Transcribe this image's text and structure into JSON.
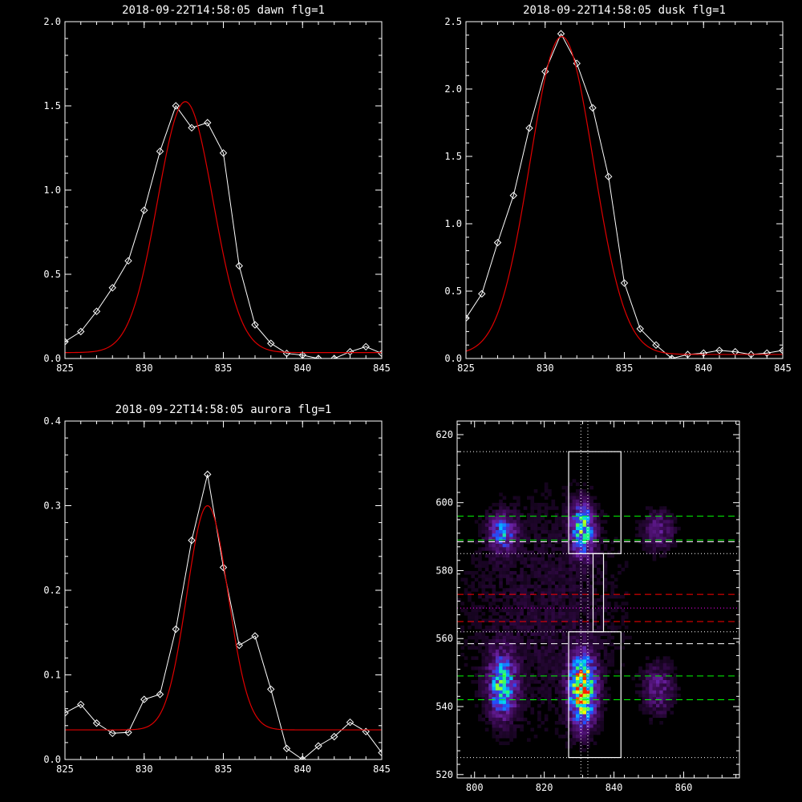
{
  "chart_data": [
    {
      "type": "line",
      "title": "2018-09-22T14:58:05 dawn flg=1",
      "xlim": [
        825,
        845
      ],
      "ylim": [
        0,
        2.0
      ],
      "xticks": [
        825,
        830,
        835,
        840,
        845
      ],
      "xtick_labels": [
        "825",
        "830",
        "835",
        "840",
        "845"
      ],
      "yticks": [
        0,
        0.5,
        1.0,
        1.5,
        2.0
      ],
      "ytick_labels": [
        "0.0",
        "0.5",
        "1.0",
        "1.5",
        "2.0"
      ],
      "series": [
        {
          "style": "line-diamond",
          "color": "#ffffff",
          "x": [
            825,
            826,
            827,
            828,
            829,
            830,
            831,
            832,
            833,
            834,
            835,
            836,
            837,
            838,
            839,
            840,
            841,
            842,
            843,
            844,
            845
          ],
          "y": [
            0.1,
            0.16,
            0.28,
            0.42,
            0.58,
            0.88,
            1.23,
            1.5,
            1.37,
            1.4,
            1.22,
            0.55,
            0.2,
            0.09,
            0.03,
            0.02,
            0.0,
            0.0,
            0.04,
            0.07,
            0.03
          ]
        },
        {
          "style": "curve",
          "color": "#e00000",
          "gaussian": {
            "amplitude": 1.49,
            "center": 832.6,
            "sigma": 1.75,
            "baseline": 0.035
          }
        }
      ]
    },
    {
      "type": "line",
      "title": "2018-09-22T14:58:05 dusk flg=1",
      "xlim": [
        825,
        845
      ],
      "ylim": [
        0,
        2.5
      ],
      "xticks": [
        825,
        830,
        835,
        840,
        845
      ],
      "xtick_labels": [
        "825",
        "830",
        "835",
        "840",
        "845"
      ],
      "yticks": [
        0,
        0.5,
        1.0,
        1.5,
        2.0,
        2.5
      ],
      "ytick_labels": [
        "0.0",
        "0.5",
        "1.0",
        "1.5",
        "2.0",
        "2.5"
      ],
      "series": [
        {
          "style": "line-diamond",
          "color": "#ffffff",
          "x": [
            825,
            826,
            827,
            828,
            829,
            830,
            831,
            832,
            833,
            834,
            835,
            836,
            837,
            838,
            839,
            840,
            841,
            842,
            843,
            844,
            845
          ],
          "y": [
            0.3,
            0.48,
            0.86,
            1.21,
            1.71,
            2.13,
            2.41,
            2.19,
            1.86,
            1.35,
            0.56,
            0.22,
            0.1,
            0.0,
            0.03,
            0.04,
            0.06,
            0.05,
            0.03,
            0.04,
            0.06
          ]
        },
        {
          "style": "curve",
          "color": "#e00000",
          "gaussian": {
            "amplitude": 2.36,
            "center": 831.05,
            "sigma": 2.0,
            "baseline": 0.03
          }
        }
      ]
    },
    {
      "type": "line",
      "title": "2018-09-22T14:58:05 aurora flg=1",
      "xlim": [
        825,
        845
      ],
      "ylim": [
        0,
        0.4
      ],
      "xticks": [
        825,
        830,
        835,
        840,
        845
      ],
      "xtick_labels": [
        "825",
        "830",
        "835",
        "840",
        "845"
      ],
      "yticks": [
        0,
        0.1,
        0.2,
        0.3,
        0.4
      ],
      "ytick_labels": [
        "0.0",
        "0.1",
        "0.2",
        "0.3",
        "0.4"
      ],
      "series": [
        {
          "style": "line-diamond",
          "color": "#ffffff",
          "x": [
            825,
            826,
            827,
            828,
            829,
            830,
            831,
            832,
            833,
            834,
            835,
            836,
            837,
            838,
            839,
            840,
            841,
            842,
            843,
            844,
            845
          ],
          "y": [
            0.055,
            0.065,
            0.043,
            0.031,
            0.032,
            0.071,
            0.077,
            0.154,
            0.259,
            0.337,
            0.227,
            0.135,
            0.146,
            0.083,
            0.013,
            0.0,
            0.016,
            0.027,
            0.044,
            0.033,
            0.008
          ]
        },
        {
          "style": "curve",
          "color": "#e00000",
          "gaussian": {
            "amplitude": 0.265,
            "center": 834.0,
            "sigma": 1.3,
            "baseline": 0.035
          }
        }
      ]
    },
    {
      "type": "heatmap",
      "title": "",
      "xlim": [
        795,
        876
      ],
      "ylim": [
        519,
        624
      ],
      "xticks": [
        800,
        820,
        840,
        860
      ],
      "xtick_labels": [
        "800",
        "820",
        "840",
        "860"
      ],
      "yticks": [
        520,
        540,
        560,
        580,
        600,
        620
      ],
      "ytick_labels": [
        "520",
        "540",
        "560",
        "580",
        "600",
        "620"
      ],
      "colormap": [
        "#000000",
        "#3a0a52",
        "#6a1fa0",
        "#2050ff",
        "#00d0ff",
        "#30ff60",
        "#ffff00",
        "#ff2000"
      ],
      "blobs": [
        {
          "x": 808,
          "y": 591,
          "sx": 2.5,
          "sy": 3.5,
          "peak": 0.42
        },
        {
          "x": 831,
          "y": 592,
          "sx": 2.2,
          "sy": 5,
          "peak": 0.6
        },
        {
          "x": 808,
          "y": 546,
          "sx": 2.6,
          "sy": 6,
          "peak": 0.58
        },
        {
          "x": 831,
          "y": 545,
          "sx": 2.4,
          "sy": 6.5,
          "peak": 0.98
        },
        {
          "x": 853,
          "y": 592,
          "sx": 3,
          "sy": 4,
          "peak": 0.2
        },
        {
          "x": 853,
          "y": 545,
          "sx": 3,
          "sy": 5,
          "peak": 0.22
        },
        {
          "x": 820,
          "y": 568,
          "sx": 20,
          "sy": 30,
          "peak": 0.08
        }
      ],
      "boxes": [
        {
          "x0": 827,
          "x1": 842,
          "y0": 585,
          "y1": 615
        },
        {
          "x0": 827,
          "x1": 842,
          "y0": 525,
          "y1": 562
        },
        {
          "x0": 834,
          "x1": 837,
          "y0": 562,
          "y1": 585
        }
      ],
      "hlines": [
        {
          "y": 615,
          "color": "#ffffff",
          "dash": "dot"
        },
        {
          "y": 585,
          "color": "#ffffff",
          "dash": "dot"
        },
        {
          "y": 525,
          "color": "#ffffff",
          "dash": "dot"
        },
        {
          "y": 596,
          "color": "#00ff00",
          "dash": "dash"
        },
        {
          "y": 589,
          "color": "#00ff00",
          "dash": "dash"
        },
        {
          "y": 588.5,
          "color": "#ffffff",
          "dash": "dash"
        },
        {
          "y": 573,
          "color": "#ff0000",
          "dash": "dash"
        },
        {
          "y": 569,
          "color": "#ff00ff",
          "dash": "dot"
        },
        {
          "y": 565,
          "color": "#ff0000",
          "dash": "dash"
        },
        {
          "y": 562,
          "color": "#ffffff",
          "dash": "dot"
        },
        {
          "y": 558.5,
          "color": "#ffffff",
          "dash": "dash"
        },
        {
          "y": 549,
          "color": "#00ff00",
          "dash": "dash"
        },
        {
          "y": 542,
          "color": "#00ff00",
          "dash": "dash"
        }
      ],
      "vlines": [
        {
          "x": 830.5,
          "color": "#ffffff",
          "dash": "dot"
        },
        {
          "x": 832.5,
          "color": "#ffffff",
          "dash": "dot"
        }
      ]
    }
  ]
}
